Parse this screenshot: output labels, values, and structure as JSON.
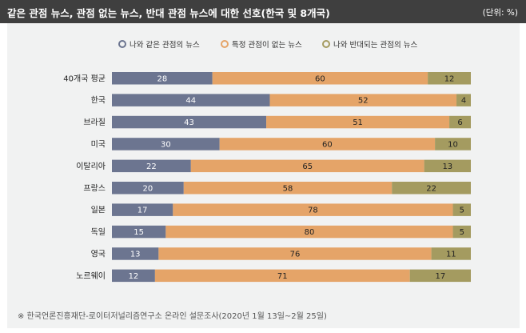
{
  "title": "같은 관점 뉴스, 관점 없는 뉴스, 반대 관점 뉴스에 대한 선호(한국 및 8개국)",
  "unit": "(단위: %)",
  "source": "※  한국언론진흥재단-로이터저널리즘연구소 온라인 설문조사(2020년 1월 13일~2월 25일)",
  "colors": {
    "same": "#6c7590",
    "none": "#e5a468",
    "opposite": "#a49b60",
    "header": "#3f3f3f",
    "panel": "#f1f2f2"
  },
  "chart_data": {
    "type": "bar",
    "orientation": "horizontal",
    "stacked": true,
    "title": "같은 관점 뉴스, 관점 없는 뉴스, 반대 관점 뉴스에 대한 선호(한국 및 8개국)",
    "categories": [
      "40개국 평균",
      "한국",
      "브라질",
      "미국",
      "이탈리아",
      "프랑스",
      "일본",
      "독일",
      "영국",
      "노르웨이"
    ],
    "series": [
      {
        "name": "나와 같은 관점의 뉴스",
        "values": [
          28,
          44,
          43,
          30,
          22,
          20,
          17,
          15,
          13,
          12
        ]
      },
      {
        "name": "특정 관점이 없는 뉴스",
        "values": [
          60,
          52,
          51,
          60,
          65,
          58,
          78,
          80,
          76,
          71
        ]
      },
      {
        "name": "나와 반대되는 관점의 뉴스",
        "values": [
          12,
          4,
          6,
          10,
          13,
          22,
          5,
          5,
          11,
          17
        ]
      }
    ],
    "legend_position": "top",
    "grid": false
  }
}
